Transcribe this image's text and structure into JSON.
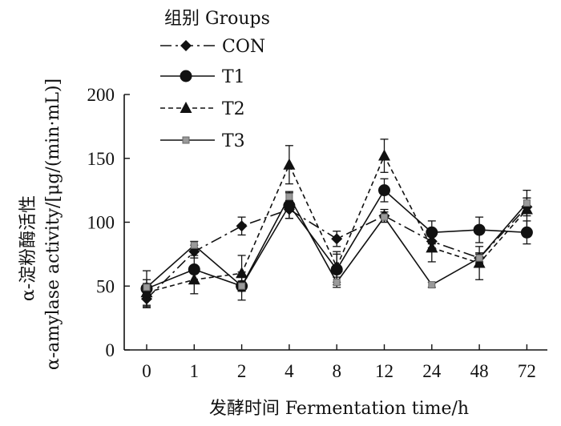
{
  "chart_data": {
    "type": "line",
    "xlabel": "发酵时间 Fermentation time/h",
    "ylabel_line1": "α-淀粉酶活性",
    "ylabel_line2": "α-amylase activity/[μg/(min·mL)]",
    "categories": [
      "0",
      "1",
      "2",
      "4",
      "8",
      "12",
      "24",
      "48",
      "72"
    ],
    "ylim": [
      0,
      200
    ],
    "yticks": [
      0,
      50,
      100,
      150,
      200
    ],
    "grid": false,
    "legend": {
      "title": "组别  Groups",
      "placement": "top-left"
    },
    "series": [
      {
        "name": "CON",
        "values": [
          40,
          77,
          97,
          110,
          87,
          105,
          85,
          72,
          112
        ],
        "errors": [
          7,
          5,
          7,
          7,
          6,
          5,
          5,
          4,
          7
        ],
        "color": "#111111",
        "dash": "14,5,3,5",
        "marker": "diamond"
      },
      {
        "name": "T1",
        "values": [
          48,
          63,
          50,
          113,
          63,
          125,
          92,
          94,
          92
        ],
        "errors": [
          14,
          11,
          11,
          10,
          12,
          9,
          9,
          10,
          9
        ],
        "color": "#111111",
        "dash": "",
        "marker": "circle"
      },
      {
        "name": "T2",
        "values": [
          45,
          55,
          60,
          145,
          65,
          152,
          80,
          68,
          110
        ],
        "errors": [
          10,
          11,
          14,
          15,
          12,
          13,
          11,
          13,
          15
        ],
        "color": "#111111",
        "dash": "6,4",
        "marker": "triangle"
      },
      {
        "name": "T3",
        "values": [
          49,
          82,
          50,
          120,
          53,
          104,
          51,
          72,
          115
        ],
        "errors": [
          3,
          3,
          4,
          4,
          4,
          4,
          2,
          3,
          4
        ],
        "color": "#111111",
        "dash": "",
        "marker": "square"
      }
    ]
  }
}
